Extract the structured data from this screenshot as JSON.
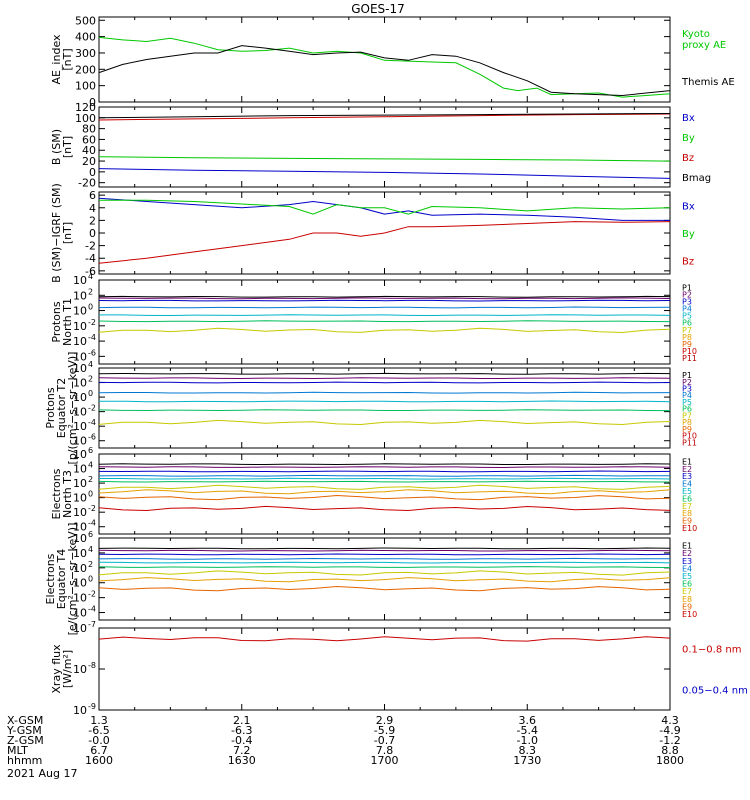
{
  "title": "GOES-17",
  "date_label": "2021 Aug 17",
  "ephemeris": {
    "row_labels": [
      "X-GSM",
      "Y-GSM",
      "Z-GSM",
      "MLT",
      "hhmm"
    ],
    "columns": [
      {
        "values": [
          "1.3",
          "-6.5",
          "-0.0",
          "6.7",
          "1600"
        ]
      },
      {
        "values": [
          "2.1",
          "-6.3",
          "-0.4",
          "7.2",
          "1630"
        ]
      },
      {
        "values": [
          "2.9",
          "-5.9",
          "-0.7",
          "7.8",
          "1700"
        ]
      },
      {
        "values": [
          "3.6",
          "-5.4",
          "-1.0",
          "8.3",
          "1730"
        ]
      },
      {
        "values": [
          "4.3",
          "-4.9",
          "-1.2",
          "8.8",
          "1800"
        ]
      }
    ]
  },
  "colors": {
    "black": "#000000",
    "green": "#00c800",
    "blue": "#0000c8",
    "red": "#c80000",
    "p": [
      "#000000",
      "#6b006b",
      "#0000c8",
      "#0078d2",
      "#00b4c8",
      "#00be5a",
      "#c8c800",
      "#e6a000",
      "#e66400",
      "#c80000",
      "#b40000"
    ],
    "e": [
      "#000000",
      "#6b006b",
      "#0000c8",
      "#0078d2",
      "#00b4c8",
      "#00be5a",
      "#c8c800",
      "#e6a000",
      "#e66400",
      "#c80000"
    ]
  },
  "chart_data": [
    {
      "type": "line",
      "ylabel": "AE_index\n[nT]",
      "yticks": [
        "500",
        "400",
        "300",
        "200",
        "100",
        "0"
      ],
      "ylim": [
        0,
        520
      ],
      "x_range_minutes": [
        0,
        120
      ],
      "series": [
        {
          "name": "Kyoto\nproxy AE",
          "color": "green",
          "x": [
            0,
            5,
            10,
            15,
            20,
            25,
            30,
            35,
            40,
            45,
            50,
            55,
            60,
            65,
            70,
            75,
            80,
            85,
            88,
            92,
            95,
            100,
            105,
            110,
            115,
            120
          ],
          "y": [
            395,
            380,
            370,
            390,
            360,
            320,
            310,
            315,
            330,
            300,
            310,
            300,
            255,
            250,
            245,
            240,
            170,
            85,
            70,
            85,
            45,
            50,
            55,
            30,
            40,
            50
          ]
        },
        {
          "name": "Themis AE",
          "color": "black",
          "x": [
            0,
            5,
            10,
            15,
            20,
            25,
            30,
            35,
            40,
            45,
            50,
            55,
            60,
            65,
            70,
            75,
            80,
            85,
            90,
            95,
            100,
            105,
            110,
            115,
            120
          ],
          "y": [
            180,
            230,
            260,
            280,
            300,
            300,
            345,
            330,
            310,
            290,
            300,
            305,
            270,
            255,
            290,
            280,
            240,
            180,
            130,
            60,
            50,
            45,
            40,
            55,
            70
          ]
        }
      ]
    },
    {
      "type": "line",
      "ylabel": "B (SM)\n[nT]",
      "yticks": [
        "120",
        "100",
        "80",
        "60",
        "40",
        "20",
        "0",
        "-20"
      ],
      "ylim": [
        -28,
        120
      ],
      "x_range_minutes": [
        0,
        120
      ],
      "series": [
        {
          "name": "Bx",
          "color": "blue",
          "x": [
            0,
            20,
            40,
            60,
            80,
            100,
            120
          ],
          "y": [
            6,
            3,
            1,
            -1,
            -4,
            -8,
            -12
          ]
        },
        {
          "name": "By",
          "color": "green",
          "x": [
            0,
            20,
            40,
            60,
            80,
            100,
            120
          ],
          "y": [
            28,
            26,
            25,
            24,
            23,
            22,
            20
          ]
        },
        {
          "name": "Bz",
          "color": "red",
          "x": [
            0,
            20,
            40,
            60,
            80,
            100,
            120
          ],
          "y": [
            96,
            98,
            100,
            102,
            104,
            106,
            107
          ]
        },
        {
          "name": "Bmag",
          "color": "black",
          "x": [
            0,
            20,
            40,
            60,
            80,
            100,
            120
          ],
          "y": [
            100,
            102,
            104,
            105,
            106,
            107,
            108
          ]
        }
      ]
    },
    {
      "type": "line",
      "ylabel": "B (SM)−IGRF (SM)\n[nT]",
      "yticks": [
        "6",
        "4",
        "2",
        "0",
        "-2",
        "-4",
        "-6"
      ],
      "ylim": [
        -6.5,
        6.5
      ],
      "x_range_minutes": [
        0,
        120
      ],
      "series": [
        {
          "name": "Bx",
          "color": "blue",
          "x": [
            0,
            10,
            20,
            30,
            40,
            45,
            50,
            55,
            60,
            65,
            70,
            80,
            90,
            100,
            110,
            120
          ],
          "y": [
            5.5,
            5,
            4.5,
            4,
            4.5,
            5,
            4.5,
            4,
            3,
            3.5,
            2.8,
            3,
            2.8,
            2.5,
            2,
            2
          ]
        },
        {
          "name": "By",
          "color": "green",
          "x": [
            0,
            10,
            20,
            30,
            40,
            45,
            50,
            55,
            60,
            65,
            70,
            80,
            90,
            100,
            110,
            120
          ],
          "y": [
            5.2,
            5.2,
            5,
            4.6,
            4.2,
            3,
            4.5,
            4,
            4,
            3,
            4.2,
            4,
            3.5,
            4,
            3.8,
            4
          ]
        },
        {
          "name": "Bz",
          "color": "red",
          "x": [
            0,
            10,
            20,
            30,
            40,
            45,
            50,
            55,
            60,
            65,
            70,
            80,
            90,
            100,
            110,
            120
          ],
          "y": [
            -4.8,
            -4,
            -3,
            -2,
            -1,
            0,
            0,
            -0.5,
            0,
            1,
            1,
            1.2,
            1.5,
            1.8,
            1.7,
            1.8
          ]
        }
      ]
    },
    {
      "type": "line",
      "ylabel": "Protons\nNorth T1",
      "ylog_range": [
        -7,
        4
      ],
      "ytick_exponents": [
        4,
        2,
        0,
        -2,
        -4,
        -6
      ],
      "x_range_minutes": [
        0,
        120
      ],
      "series": [
        {
          "name": "P1",
          "color_index": 0,
          "log_y": 1.8
        },
        {
          "name": "P2",
          "color_index": 1,
          "log_y": 1.6
        },
        {
          "name": "P3",
          "color_index": 2,
          "log_y": 1.3
        },
        {
          "name": "P4",
          "color_index": 3,
          "log_y": 0.4
        },
        {
          "name": "P5",
          "color_index": 4,
          "log_y": -0.6
        },
        {
          "name": "P6",
          "color_index": 5,
          "log_y": -1.4
        },
        {
          "name": "P7",
          "color_index": 6,
          "log_y": -2.6
        },
        {
          "name": "P8",
          "color_index": 7,
          "log_y": null
        },
        {
          "name": "P9",
          "color_index": 8,
          "log_y": null
        },
        {
          "name": "P10",
          "color_index": 9,
          "log_y": null
        },
        {
          "name": "P11",
          "color_index": 10,
          "log_y": null
        }
      ]
    },
    {
      "type": "line",
      "ylabel": "Protons\nEquator T2\n[p/(cm²−s−sr−keV)]",
      "ylog_range": [
        -7,
        4
      ],
      "ytick_exponents": [
        4,
        2,
        0,
        -2,
        -4,
        -6
      ],
      "x_range_minutes": [
        0,
        120
      ],
      "series": [
        {
          "name": "P1",
          "color_index": 0,
          "log_y": 3.2
        },
        {
          "name": "P2",
          "color_index": 1,
          "log_y": 2.6
        },
        {
          "name": "P3",
          "color_index": 2,
          "log_y": 2.0
        },
        {
          "name": "P4",
          "color_index": 3,
          "log_y": 0.6
        },
        {
          "name": "P5",
          "color_index": 4,
          "log_y": -0.6
        },
        {
          "name": "P6",
          "color_index": 5,
          "log_y": -1.8
        },
        {
          "name": "P7",
          "color_index": 6,
          "log_y": -3.5
        },
        {
          "name": "P8",
          "color_index": 7,
          "log_y": null
        },
        {
          "name": "P9",
          "color_index": 8,
          "log_y": null
        },
        {
          "name": "P10",
          "color_index": 9,
          "log_y": null
        },
        {
          "name": "P11",
          "color_index": 10,
          "log_y": null
        }
      ]
    },
    {
      "type": "line",
      "ylabel": "Electrons\nNorth T3",
      "ylog_range": [
        -5,
        6
      ],
      "ytick_exponents": [
        6,
        4,
        2,
        0,
        -2,
        -4
      ],
      "x_range_minutes": [
        0,
        120
      ],
      "series": [
        {
          "name": "E1",
          "color_index": 0,
          "log_y": 4.6
        },
        {
          "name": "E2",
          "color_index": 1,
          "log_y": 4.2
        },
        {
          "name": "E3",
          "color_index": 2,
          "log_y": 3.6
        },
        {
          "name": "E4",
          "color_index": 3,
          "log_y": 3.0
        },
        {
          "name": "E5",
          "color_index": 4,
          "log_y": 2.6
        },
        {
          "name": "E6",
          "color_index": 5,
          "log_y": 2.2
        },
        {
          "name": "E7",
          "color_index": 6,
          "log_y": 1.4
        },
        {
          "name": "E8",
          "color_index": 7,
          "log_y": 0.8
        },
        {
          "name": "E9",
          "color_index": 8,
          "log_y": 0.0
        },
        {
          "name": "E10",
          "color_index": 9,
          "log_y": -1.5
        }
      ]
    },
    {
      "type": "line",
      "ylabel": "Electrons\nEquator T4\n[e/(cm²−s−sr−keV)]",
      "ylog_range": [
        -5,
        6
      ],
      "ytick_exponents": [
        6,
        4,
        2,
        0,
        -2,
        -4
      ],
      "x_range_minutes": [
        0,
        120
      ],
      "series": [
        {
          "name": "E1",
          "color_index": 0,
          "log_y": 4.6
        },
        {
          "name": "E2",
          "color_index": 1,
          "log_y": 4.3
        },
        {
          "name": "E3",
          "color_index": 2,
          "log_y": 3.8
        },
        {
          "name": "E4",
          "color_index": 3,
          "log_y": 3.2
        },
        {
          "name": "E5",
          "color_index": 4,
          "log_y": 2.7
        },
        {
          "name": "E6",
          "color_index": 5,
          "log_y": 2.1
        },
        {
          "name": "E7",
          "color_index": 6,
          "log_y": 1.3
        },
        {
          "name": "E8",
          "color_index": 7,
          "log_y": 0.4
        },
        {
          "name": "E9",
          "color_index": 8,
          "log_y": -0.8
        },
        {
          "name": "E10",
          "color_index": 9,
          "log_y": null
        }
      ]
    },
    {
      "type": "line",
      "ylabel": "Xray flux\n[W/m²]",
      "ylog_range": [
        -9,
        -7
      ],
      "ytick_exponents": [
        -7,
        -8,
        -9
      ],
      "x_range_minutes": [
        0,
        120
      ],
      "series": [
        {
          "name": "0.1−0.8 nm",
          "color": "red",
          "log_y": -7.27
        },
        {
          "name": "0.05−0.4 nm",
          "color": "blue",
          "log_y": null
        }
      ]
    }
  ]
}
